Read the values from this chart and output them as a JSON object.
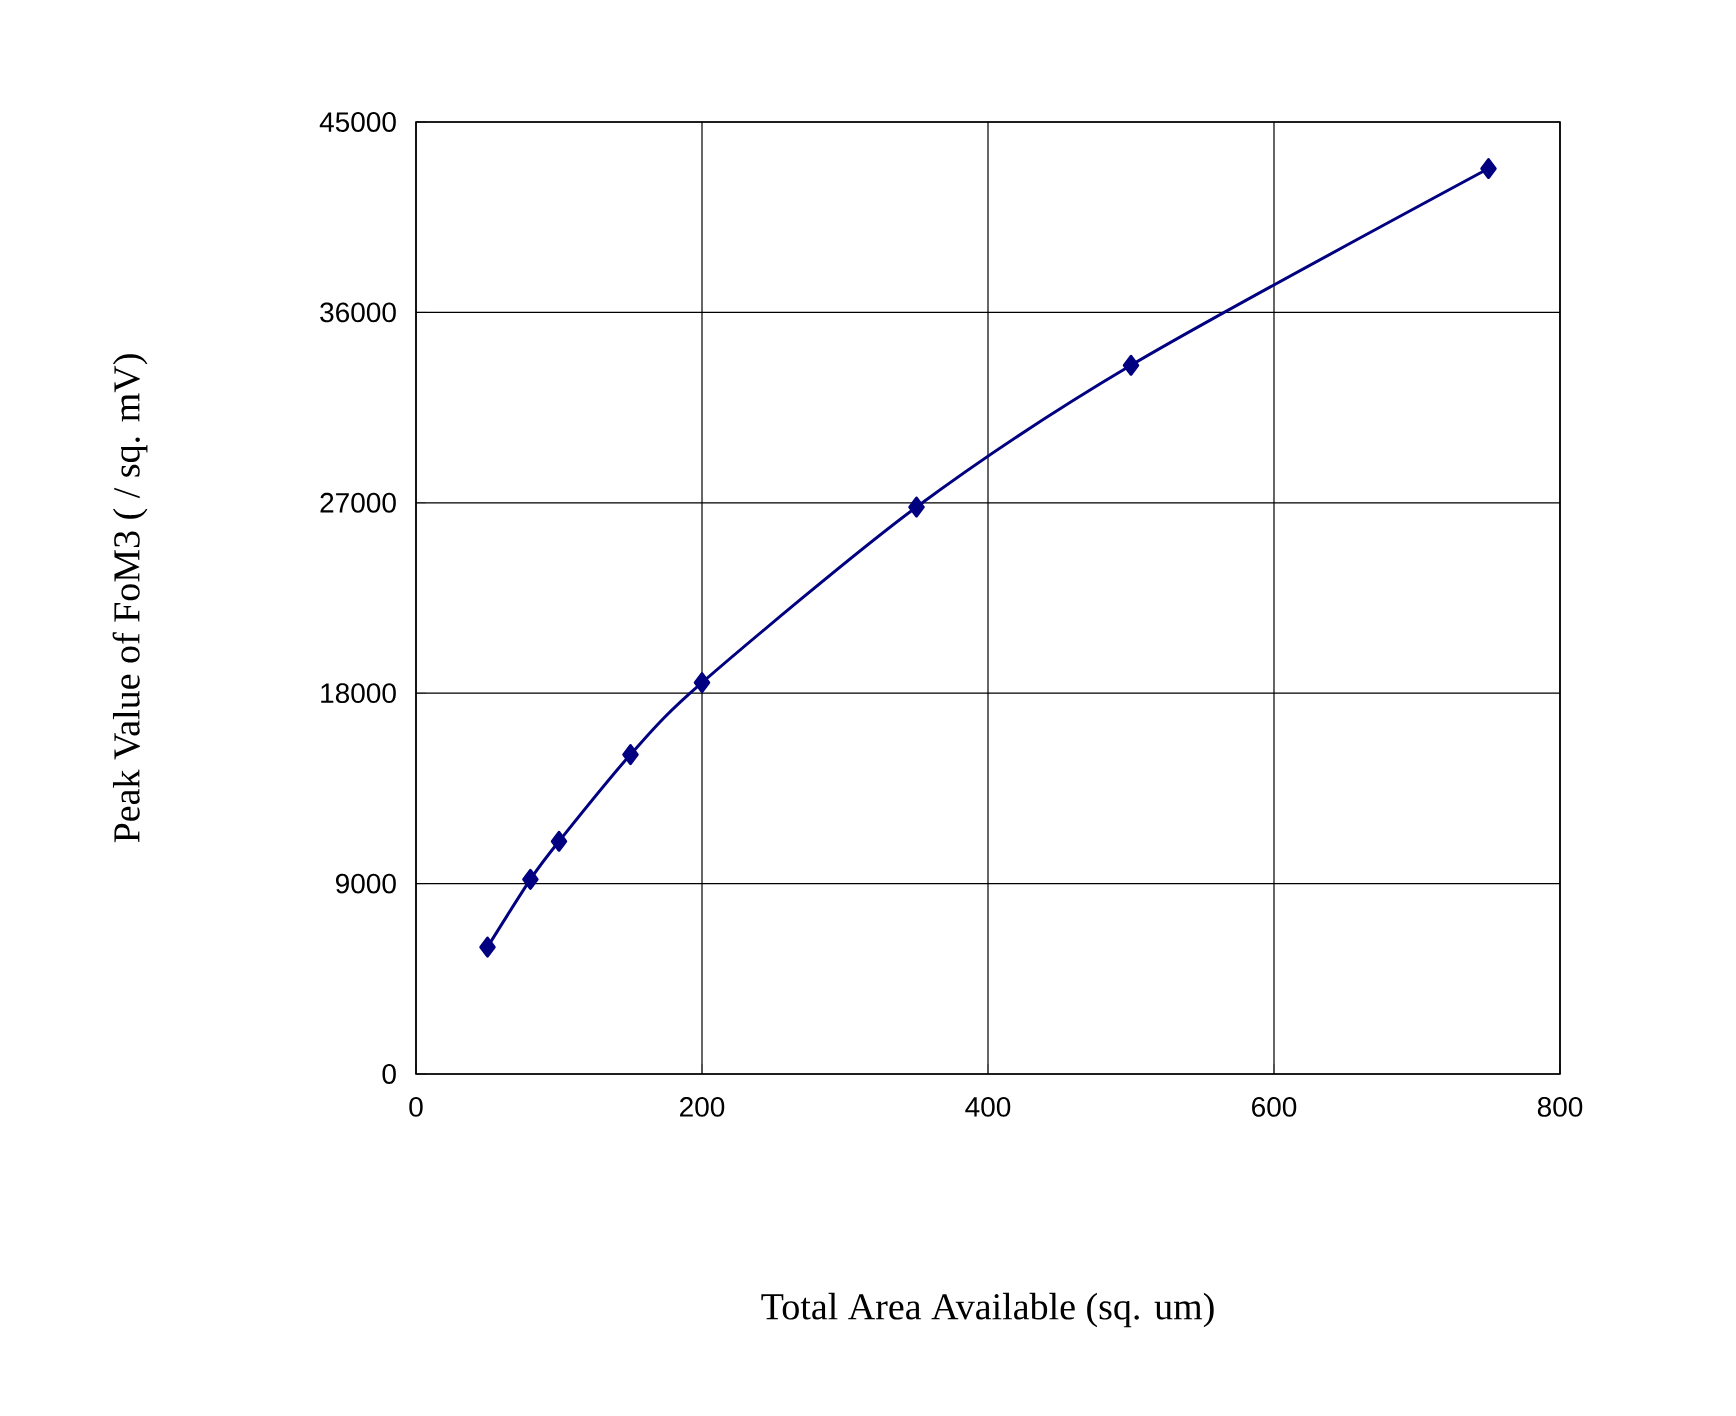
{
  "chart_data": {
    "type": "line",
    "xlabel": "Total Area Available (sq. um)",
    "ylabel": "Peak Value of FoM3 ( / sq. mV)",
    "x": [
      50,
      80,
      100,
      150,
      200,
      350,
      500,
      750
    ],
    "series": [
      {
        "color": "#000080",
        "values": [
          6000,
          9200,
          11000,
          15100,
          18500,
          26800,
          33500,
          42800
        ]
      }
    ],
    "xlim": [
      0,
      800
    ],
    "xticks": [
      0,
      200,
      400,
      600,
      800
    ],
    "ylim": [
      0,
      45000
    ],
    "yticks": [
      0,
      9000,
      18000,
      27000,
      36000,
      45000
    ],
    "grid": true,
    "marker": "diamond",
    "line_style": "solid"
  }
}
